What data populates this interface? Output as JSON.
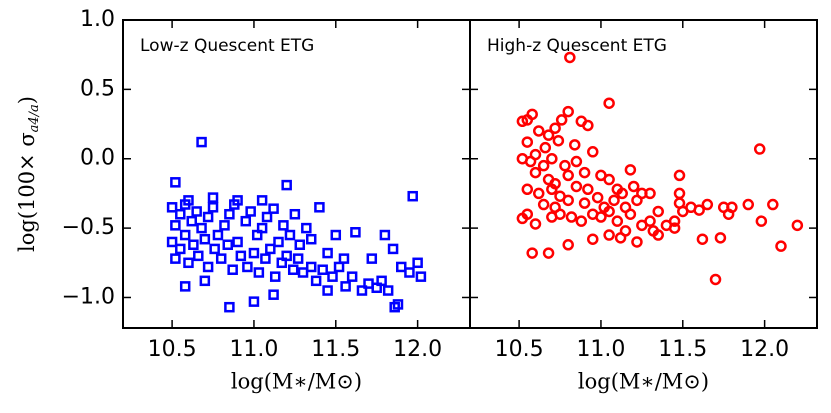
{
  "chart_data": [
    {
      "type": "scatter",
      "title": "Low-z Quescent ETG",
      "marker": "square",
      "color": "#0000ff",
      "x_label": "log(M∗/M⊙)",
      "y_label": "log(100× σ",
      "y_label_sub": "a4/a",
      "y_label_end": ")",
      "xlim": [
        10.2,
        12.32
      ],
      "ylim": [
        -1.22,
        1.0
      ],
      "xticks": [
        10.5,
        {
          "value": 11.0,
          "label": "11.0"
        },
        11.5,
        {
          "value": 12.0,
          "label": "12.0"
        }
      ],
      "yticks": [
        {
          "value": -1.0,
          "label": "−1.0"
        },
        {
          "value": -0.5,
          "label": "−0.5"
        },
        {
          "value": 0.0,
          "label": "0.0"
        },
        0.5,
        {
          "value": 1.0,
          "label": "1.0"
        }
      ],
      "show_ytick_labels": true,
      "x": [
        10.68,
        11.2,
        11.97,
        10.52,
        10.5,
        10.55,
        10.52,
        10.58,
        10.62,
        10.65,
        10.68,
        10.72,
        10.75,
        10.78,
        10.82,
        10.85,
        10.88,
        10.9,
        10.95,
        10.98,
        11.02,
        11.05,
        11.08,
        11.12,
        11.15,
        11.18,
        11.22,
        11.25,
        11.28,
        11.32,
        11.35,
        11.4,
        11.45,
        11.5,
        11.55,
        11.62,
        10.5,
        10.52,
        10.55,
        10.58,
        10.6,
        10.63,
        10.66,
        10.7,
        10.72,
        10.76,
        10.8,
        10.84,
        10.87,
        10.92,
        10.96,
        11.0,
        11.03,
        11.07,
        11.1,
        11.13,
        11.17,
        11.2,
        11.24,
        11.27,
        11.3,
        11.35,
        11.38,
        11.42,
        11.48,
        11.52,
        11.56,
        11.6,
        11.66,
        11.7,
        11.75,
        11.78,
        11.82,
        11.86,
        11.88,
        11.9,
        11.95,
        12.0,
        12.02,
        11.85,
        11.72,
        11.8,
        10.58,
        10.85,
        11.0,
        10.7,
        11.12,
        11.45,
        10.9,
        10.75,
        11.05,
        10.6
      ],
      "values": [
        0.12,
        -0.19,
        -0.27,
        -0.17,
        -0.35,
        -0.4,
        -0.48,
        -0.33,
        -0.45,
        -0.38,
        -0.5,
        -0.42,
        -0.35,
        -0.55,
        -0.48,
        -0.4,
        -0.33,
        -0.6,
        -0.45,
        -0.38,
        -0.55,
        -0.5,
        -0.42,
        -0.36,
        -0.6,
        -0.48,
        -0.55,
        -0.4,
        -0.62,
        -0.5,
        -0.58,
        -0.35,
        -0.68,
        -0.55,
        -0.72,
        -0.53,
        -0.6,
        -0.72,
        -0.65,
        -0.55,
        -0.75,
        -0.62,
        -0.7,
        -0.58,
        -0.78,
        -0.65,
        -0.72,
        -0.62,
        -0.8,
        -0.7,
        -0.78,
        -0.68,
        -0.82,
        -0.72,
        -0.65,
        -0.85,
        -0.75,
        -0.7,
        -0.8,
        -0.72,
        -0.82,
        -0.78,
        -0.88,
        -0.8,
        -0.85,
        -0.78,
        -0.92,
        -0.85,
        -0.95,
        -0.9,
        -0.93,
        -0.88,
        -0.95,
        -1.07,
        -1.05,
        -0.78,
        -0.82,
        -0.75,
        -0.85,
        -0.65,
        -0.72,
        -0.55,
        -0.92,
        -1.07,
        -1.03,
        -0.88,
        -0.98,
        -0.95,
        -0.3,
        -0.28,
        -0.3,
        -0.3
      ]
    },
    {
      "type": "scatter",
      "title": "High-z Quescent ETG",
      "marker": "circle",
      "color": "#ff0000",
      "x_label": "log(M∗/M⊙)",
      "xlim": [
        10.2,
        12.32
      ],
      "ylim": [
        -1.22,
        1.0
      ],
      "xticks": [
        10.5,
        {
          "value": 11.0,
          "label": "11.0"
        },
        11.5,
        {
          "value": 12.0,
          "label": "12.0"
        }
      ],
      "yticks": [
        -1.0,
        -0.5,
        0.0,
        0.5,
        1.0
      ],
      "show_ytick_labels": false,
      "x": [
        10.81,
        11.05,
        10.55,
        10.52,
        10.58,
        10.72,
        10.76,
        10.8,
        10.88,
        10.92,
        10.62,
        10.68,
        10.74,
        10.84,
        10.66,
        10.55,
        10.6,
        10.52,
        10.57,
        10.65,
        10.7,
        10.78,
        10.85,
        10.95,
        10.6,
        10.68,
        10.72,
        10.8,
        10.9,
        11.0,
        10.55,
        10.62,
        10.7,
        10.75,
        10.85,
        10.92,
        11.05,
        11.1,
        11.13,
        11.18,
        11.2,
        11.25,
        10.65,
        10.72,
        10.8,
        10.9,
        10.98,
        11.02,
        11.08,
        11.15,
        11.22,
        11.3,
        11.35,
        10.55,
        10.52,
        10.6,
        10.7,
        10.75,
        10.82,
        10.88,
        10.95,
        11.0,
        11.05,
        11.1,
        11.18,
        11.25,
        11.3,
        11.4,
        11.45,
        11.5,
        11.55,
        11.6,
        11.65,
        11.48,
        11.48,
        11.48,
        11.75,
        11.8,
        11.78,
        11.9,
        11.98,
        12.05,
        11.97,
        12.2,
        12.1,
        11.73,
        11.62,
        11.7,
        11.35,
        11.22,
        11.05,
        10.95,
        10.8,
        10.68,
        10.58,
        11.12,
        11.15,
        11.32,
        11.45
      ],
      "values": [
        0.73,
        0.4,
        0.28,
        0.27,
        0.32,
        0.22,
        0.28,
        0.34,
        0.27,
        0.24,
        0.2,
        0.17,
        0.13,
        0.1,
        0.08,
        0.12,
        0.03,
        0.0,
        -0.02,
        -0.05,
        0.0,
        -0.05,
        -0.02,
        0.05,
        -0.1,
        -0.15,
        -0.18,
        -0.12,
        -0.1,
        -0.12,
        -0.22,
        -0.25,
        -0.22,
        -0.27,
        -0.2,
        -0.22,
        -0.15,
        -0.22,
        -0.25,
        -0.08,
        -0.2,
        -0.25,
        -0.33,
        -0.35,
        -0.3,
        -0.32,
        -0.28,
        -0.35,
        -0.3,
        -0.35,
        -0.3,
        -0.25,
        -0.38,
        -0.4,
        -0.43,
        -0.47,
        -0.42,
        -0.4,
        -0.42,
        -0.45,
        -0.4,
        -0.42,
        -0.38,
        -0.45,
        -0.4,
        -0.48,
        -0.45,
        -0.48,
        -0.45,
        -0.38,
        -0.35,
        -0.37,
        -0.33,
        -0.12,
        -0.25,
        -0.32,
        -0.35,
        -0.35,
        -0.4,
        -0.33,
        -0.45,
        -0.33,
        0.07,
        -0.48,
        -0.63,
        -0.57,
        -0.58,
        -0.87,
        -0.55,
        -0.6,
        -0.55,
        -0.58,
        -0.62,
        -0.68,
        -0.68,
        -0.57,
        -0.52,
        -0.52,
        -0.5
      ]
    }
  ]
}
